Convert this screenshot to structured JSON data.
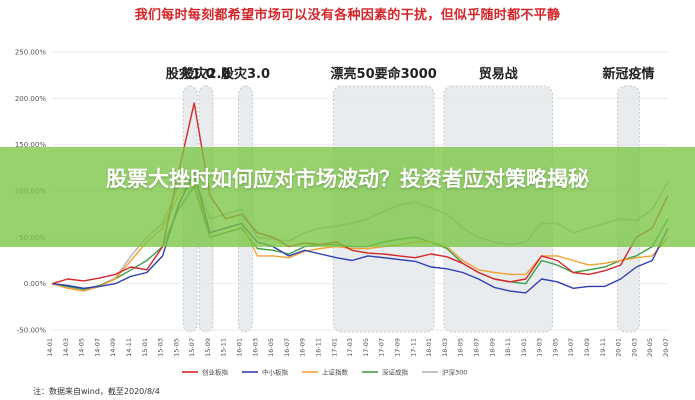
{
  "header": {
    "caption": "我们每时每刻都希望市场可以没有各种因素的干扰，但似乎随时都不平静"
  },
  "banner": {
    "title": "股票大挫时如何应对市场波动？投资者应对策略揭秘"
  },
  "footnote": "注：数据来自wind，截至2020/8/4",
  "colors": {
    "caption": "#d4262a",
    "banner": "#7ac542",
    "shade_fill": "#e9ecef",
    "shade_stroke": "#b8bdc2"
  },
  "chart_data": {
    "type": "line",
    "y_ticks": [
      "250.00%",
      "200.00%",
      "150.00%",
      "100.00%",
      "50.00%",
      "0.00%",
      "-50.00%"
    ],
    "ylim": [
      -50,
      250
    ],
    "x_ticks": [
      "14-01",
      "14-03",
      "14-05",
      "14-07",
      "14-09",
      "14-11",
      "15-01",
      "15-03",
      "15-05",
      "15-07",
      "15-09",
      "15-11",
      "16-01",
      "16-03",
      "16-05",
      "16-07",
      "16-09",
      "16-11",
      "17-01",
      "17-03",
      "17-05",
      "17-07",
      "17-09",
      "17-11",
      "18-01",
      "18-03",
      "18-05",
      "18-07",
      "18-09",
      "18-11",
      "19-01",
      "19-03",
      "19-05",
      "19-07",
      "19-09",
      "19-11",
      "20-01",
      "20-03",
      "20-05",
      "20-07"
    ],
    "events": [
      {
        "label": "股灾1.0",
        "start": "15-06",
        "end": "15-07"
      },
      {
        "label": "股灾2.0",
        "start": "15-08",
        "end": "15-09"
      },
      {
        "label": "股灾3.0",
        "start": "16-01",
        "end": "16-02"
      },
      {
        "label": "漂亮50要命3000",
        "start": "17-01",
        "end": "18-01"
      },
      {
        "label": "贸易战",
        "start": "18-03",
        "end": "19-04"
      },
      {
        "label": "新冠疫情",
        "start": "20-01",
        "end": "20-03"
      }
    ],
    "series": [
      {
        "name": "创业板指",
        "color": "#d62728",
        "values": [
          0,
          5,
          3,
          6,
          10,
          18,
          15,
          40,
          120,
          195,
          95,
          70,
          75,
          55,
          50,
          40,
          44,
          42,
          45,
          36,
          33,
          32,
          30,
          28,
          32,
          29,
          22,
          12,
          5,
          2,
          5,
          30,
          25,
          12,
          10,
          14,
          20,
          50,
          60,
          95
        ]
      },
      {
        "name": "中小板指",
        "color": "#2e3fb3",
        "values": [
          0,
          -2,
          -5,
          -3,
          0,
          8,
          12,
          30,
          85,
          120,
          55,
          60,
          65,
          45,
          40,
          30,
          36,
          32,
          28,
          25,
          30,
          28,
          26,
          24,
          18,
          16,
          12,
          5,
          -4,
          -8,
          -10,
          5,
          2,
          -5,
          -3,
          -3,
          5,
          18,
          25,
          60
        ]
      },
      {
        "name": "上证指数",
        "color": "#f2a235",
        "values": [
          0,
          -5,
          -8,
          -3,
          5,
          25,
          45,
          60,
          95,
          110,
          55,
          60,
          65,
          30,
          30,
          28,
          35,
          38,
          40,
          38,
          38,
          40,
          42,
          45,
          45,
          40,
          25,
          15,
          12,
          10,
          10,
          30,
          30,
          25,
          20,
          22,
          25,
          28,
          30,
          50
        ]
      },
      {
        "name": "深证成指",
        "color": "#3d9e48",
        "values": [
          0,
          -3,
          -6,
          -2,
          5,
          15,
          25,
          40,
          80,
          105,
          50,
          55,
          60,
          38,
          36,
          32,
          40,
          42,
          42,
          40,
          40,
          45,
          48,
          50,
          45,
          38,
          22,
          12,
          5,
          2,
          0,
          25,
          20,
          12,
          15,
          18,
          25,
          30,
          40,
          70
        ]
      },
      {
        "name": "沪深300",
        "color": "#b3b3b3",
        "values": [
          0,
          -4,
          -7,
          -2,
          6,
          30,
          50,
          65,
          105,
          115,
          70,
          75,
          80,
          50,
          48,
          46,
          55,
          60,
          62,
          65,
          70,
          78,
          85,
          88,
          82,
          75,
          60,
          50,
          45,
          42,
          45,
          65,
          65,
          55,
          60,
          65,
          70,
          68,
          80,
          110
        ]
      }
    ]
  }
}
